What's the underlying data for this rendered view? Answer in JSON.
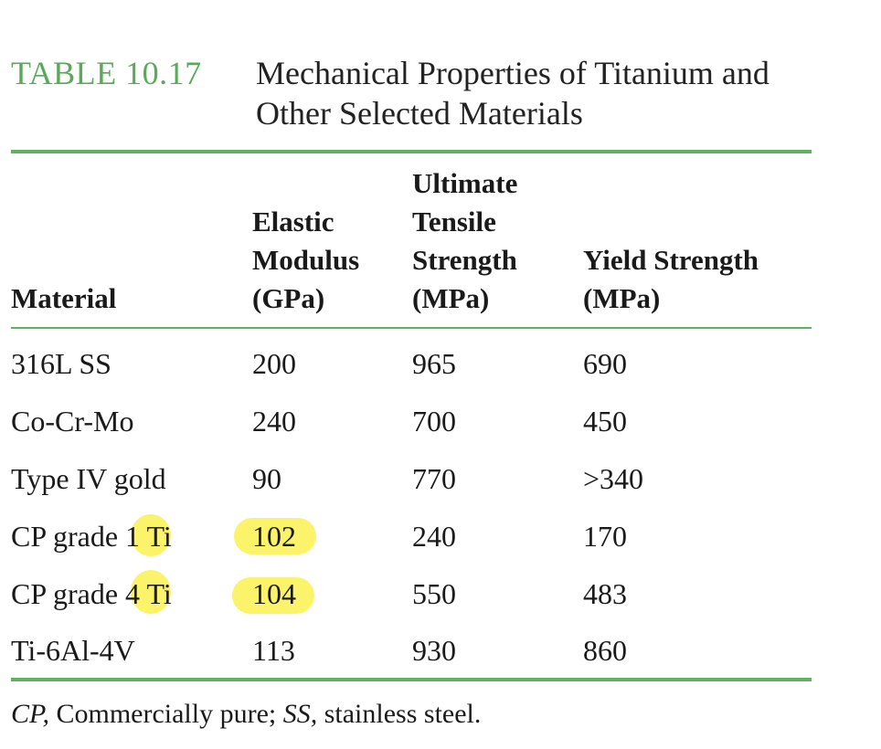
{
  "caption": {
    "label": "TABLE 10.17",
    "title": "Mechanical Properties of Titanium and Other Selected Materials"
  },
  "table": {
    "headers": {
      "material": "Material",
      "elastic": [
        "Elastic",
        "Modulus",
        "(GPa)"
      ],
      "uts": [
        "Ultimate",
        "Tensile",
        "Strength",
        "(MPa)"
      ],
      "yield": [
        "Yield Strength",
        "(MPa)"
      ]
    },
    "rows": [
      {
        "material": "316L SS",
        "elastic": "200",
        "uts": "965",
        "yield": "690"
      },
      {
        "material": "Co-Cr-Mo",
        "elastic": "240",
        "uts": "700",
        "yield": "450"
      },
      {
        "material": "Type IV gold",
        "elastic": "90",
        "uts": "770",
        "yield": ">340"
      },
      {
        "material_pre": "CP grade ",
        "material_grade": "1",
        "material_post": " Ti",
        "elastic": "102",
        "uts": "240",
        "yield": "170"
      },
      {
        "material_pre": "CP grade ",
        "material_grade": "4",
        "material_post": " Ti",
        "elastic": "104",
        "uts": "550",
        "yield": "483"
      },
      {
        "material": "Ti-6Al-4V",
        "elastic": "113",
        "uts": "930",
        "yield": "860"
      }
    ]
  },
  "footnote": {
    "cp_abbr": "CP,",
    "cp_text": " Commercially pure; ",
    "ss_abbr": "SS,",
    "ss_text": " stainless steel."
  },
  "highlight_color": "#fbf36a",
  "accent_color": "#5fb35f"
}
